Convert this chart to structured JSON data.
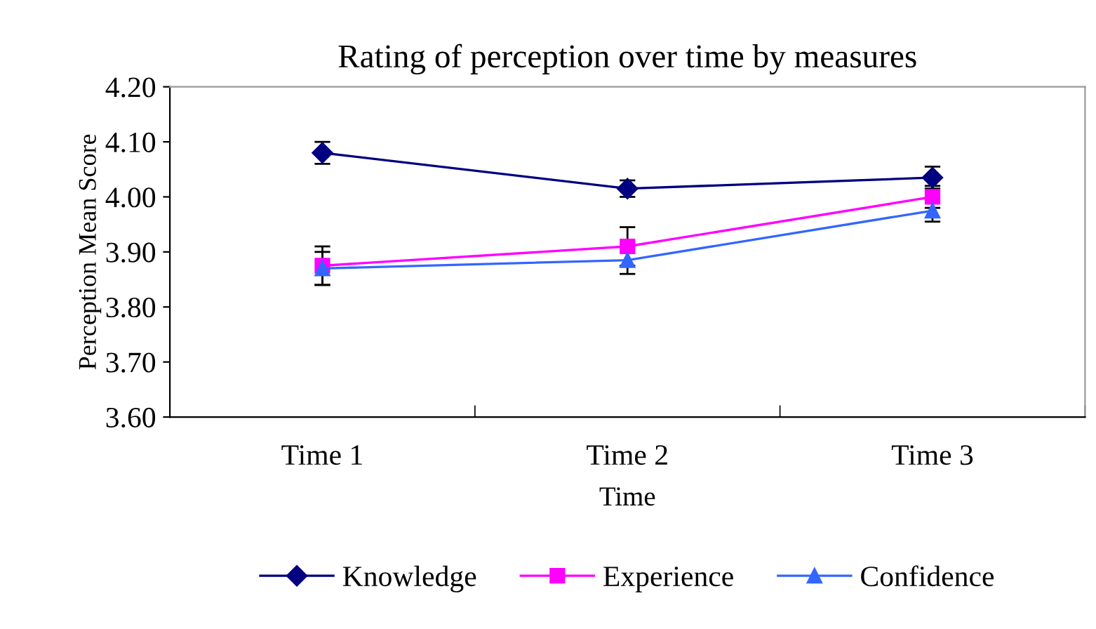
{
  "chart_data": {
    "type": "line",
    "title": "Rating of perception over time by measures",
    "xlabel": "Time",
    "ylabel": "Perception Mean Score",
    "categories": [
      "Time 1",
      "Time 2",
      "Time 3"
    ],
    "series": [
      {
        "name": "Knowledge",
        "color": "#000080",
        "marker": "diamond",
        "values": [
          4.08,
          4.015,
          4.035
        ],
        "errors": [
          0.02,
          0.015,
          0.02
        ]
      },
      {
        "name": "Experience",
        "color": "#ff00ff",
        "marker": "square",
        "values": [
          3.875,
          3.91,
          4.0
        ],
        "errors": [
          0.035,
          0.035,
          0.02
        ]
      },
      {
        "name": "Confidence",
        "color": "#3366ff",
        "marker": "triangle",
        "values": [
          3.87,
          3.885,
          3.975
        ],
        "errors": [
          0.03,
          0.025,
          0.02
        ]
      }
    ],
    "ylim": [
      3.6,
      4.2
    ],
    "yticks": [
      {
        "value": 3.6,
        "label": "3.60"
      },
      {
        "value": 3.7,
        "label": "3.70"
      },
      {
        "value": 3.8,
        "label": "3.80"
      },
      {
        "value": 3.9,
        "label": "3.90"
      },
      {
        "value": 4.0,
        "label": "4.00"
      },
      {
        "value": 4.1,
        "label": "4.10"
      },
      {
        "value": 4.2,
        "label": "4.20"
      }
    ],
    "grid": false,
    "legend": "bottom",
    "line_style": "solid"
  }
}
